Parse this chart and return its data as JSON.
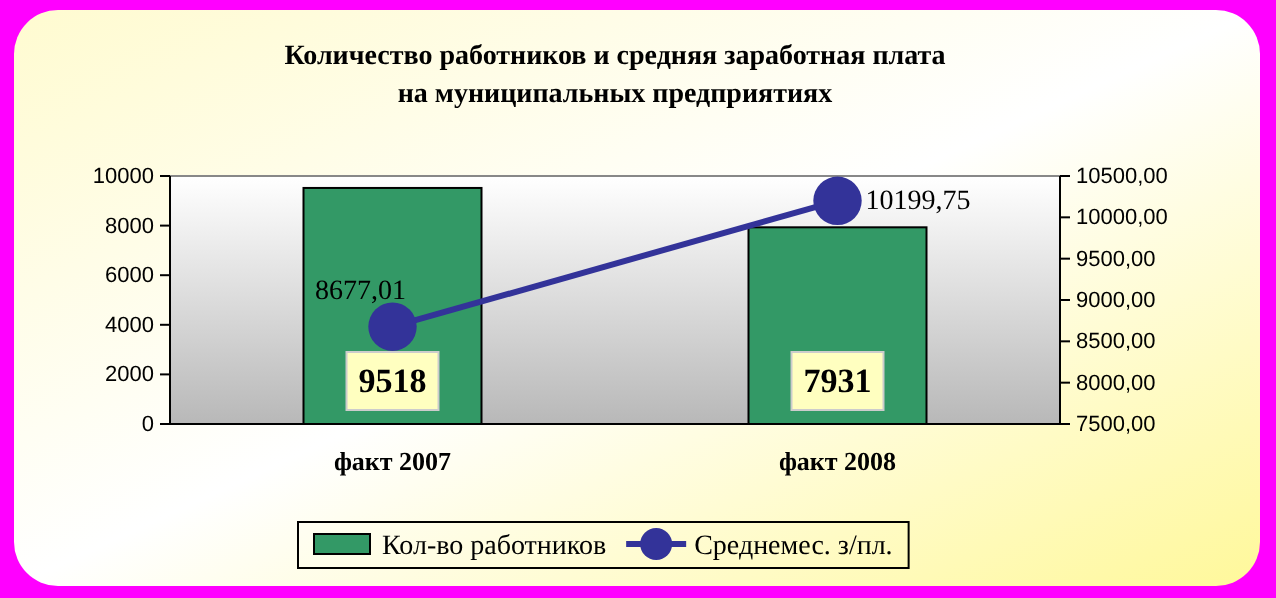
{
  "chart_data": {
    "type": "bar",
    "title": "Количество работников и средняя заработная плата на муниципальных предприятиях",
    "categories": [
      "факт 2007",
      "факт 2008"
    ],
    "series": [
      {
        "name": "Кол-во работников",
        "color": "#339966",
        "values": [
          9518,
          7931
        ],
        "value_labels": [
          "9518",
          "7931"
        ]
      },
      {
        "name": "Среднемес. з/пл.",
        "type": "line",
        "axis": "y2",
        "color": "#333399",
        "values": [
          8677.01,
          10199.75
        ],
        "value_labels": [
          "8677,01",
          "10199,75"
        ]
      }
    ],
    "ylim": [
      0,
      10000
    ],
    "yticks": [
      0,
      2000,
      4000,
      6000,
      8000,
      10000
    ],
    "y2lim": [
      7500,
      10500
    ],
    "y2ticks": [
      {
        "value": 7500,
        "label": "7500,00"
      },
      {
        "value": 8000,
        "label": "8000,00"
      },
      {
        "value": 8500,
        "label": "8500,00"
      },
      {
        "value": 9000,
        "label": "9000,00"
      },
      {
        "value": 9500,
        "label": "9500,00"
      },
      {
        "value": 10000,
        "label": "10000,00"
      },
      {
        "value": 10500,
        "label": "10500,00"
      }
    ],
    "marker": "circle",
    "legend": "bottom"
  }
}
